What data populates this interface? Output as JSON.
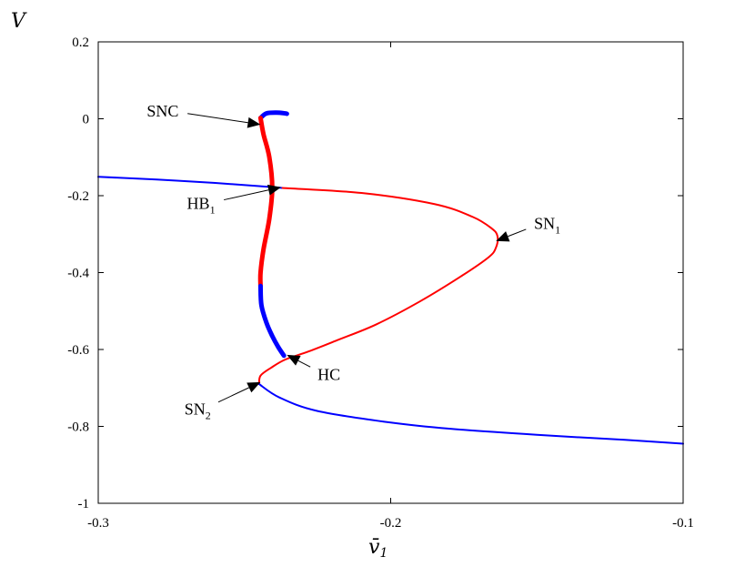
{
  "chart_data": {
    "type": "line",
    "title": "",
    "xlabel": "v̄",
    "xlabel_sub": "1",
    "ylabel": "V",
    "xlim": [
      -0.3,
      -0.1
    ],
    "ylim": [
      -1,
      0.2
    ],
    "grid": false,
    "x_ticks": [
      -0.3,
      -0.2,
      -0.1
    ],
    "x_tick_labels": [
      "-0.3",
      "-0.2",
      "-0.1"
    ],
    "y_ticks": [
      0.2,
      0,
      -0.2,
      -0.4,
      -0.6,
      -0.8,
      -1
    ],
    "y_tick_labels": [
      "0.2",
      "0",
      "-0.2",
      "-0.4",
      "-0.6",
      "-0.8",
      "-1"
    ],
    "colors": {
      "stable": "#0000ff",
      "unstable": "#ff0000",
      "axis": "#000000"
    },
    "series": [
      {
        "style": "thin",
        "color": "#0000ff",
        "x": [
          -0.3,
          -0.28,
          -0.26,
          -0.245,
          -0.237
        ],
        "y": [
          -0.151,
          -0.158,
          -0.167,
          -0.175,
          -0.18
        ]
      },
      {
        "style": "thin",
        "color": "#ff0000",
        "x": [
          -0.237,
          -0.21,
          -0.185,
          -0.172,
          -0.1655,
          -0.1635,
          -0.164,
          -0.1665,
          -0.176,
          -0.19,
          -0.205,
          -0.218,
          -0.228,
          -0.236,
          -0.241,
          -0.2445,
          -0.245
        ],
        "y": [
          -0.18,
          -0.193,
          -0.222,
          -0.255,
          -0.285,
          -0.305,
          -0.335,
          -0.36,
          -0.41,
          -0.475,
          -0.535,
          -0.575,
          -0.605,
          -0.626,
          -0.648,
          -0.668,
          -0.69
        ]
      },
      {
        "style": "thin",
        "color": "#0000ff",
        "x": [
          -0.245,
          -0.238,
          -0.225,
          -0.2,
          -0.18,
          -0.15,
          -0.12,
          -0.1
        ],
        "y": [
          -0.69,
          -0.725,
          -0.76,
          -0.79,
          -0.806,
          -0.822,
          -0.835,
          -0.845
        ]
      },
      {
        "style": "thick",
        "color": "#0000ff",
        "x": [
          -0.2445,
          -0.2425,
          -0.239,
          -0.236,
          -0.2355
        ],
        "y": [
          0.002,
          0.014,
          0.016,
          0.014,
          0.013
        ]
      },
      {
        "style": "thick",
        "color": "#ff0000",
        "x": [
          -0.2445,
          -0.2435,
          -0.2415,
          -0.2405,
          -0.2415,
          -0.2435,
          -0.2445,
          -0.2445
        ],
        "y": [
          0.002,
          -0.04,
          -0.1,
          -0.18,
          -0.26,
          -0.34,
          -0.4,
          -0.435
        ]
      },
      {
        "style": "thick",
        "color": "#0000ff",
        "x": [
          -0.2445,
          -0.2442,
          -0.2425,
          -0.2405,
          -0.2385,
          -0.2365
        ],
        "y": [
          -0.435,
          -0.485,
          -0.53,
          -0.565,
          -0.593,
          -0.616
        ]
      }
    ],
    "annotations": [
      {
        "label": "SNC",
        "sub": "",
        "point": [
          -0.2445,
          -0.015
        ],
        "text": [
          -0.275,
          0.02
        ]
      },
      {
        "label": "HB",
        "sub": "1",
        "point": [
          -0.2375,
          -0.178
        ],
        "text": [
          -0.2625,
          -0.22
        ]
      },
      {
        "label": "SN",
        "sub": "1",
        "point": [
          -0.164,
          -0.318
        ],
        "text": [
          -0.1485,
          -0.272
        ]
      },
      {
        "label": "HC",
        "sub": "",
        "point": [
          -0.2355,
          -0.614
        ],
        "text": [
          -0.2225,
          -0.665
        ]
      },
      {
        "label": "SN",
        "sub": "2",
        "point": [
          -0.2445,
          -0.685
        ],
        "text": [
          -0.264,
          -0.755
        ]
      }
    ]
  }
}
